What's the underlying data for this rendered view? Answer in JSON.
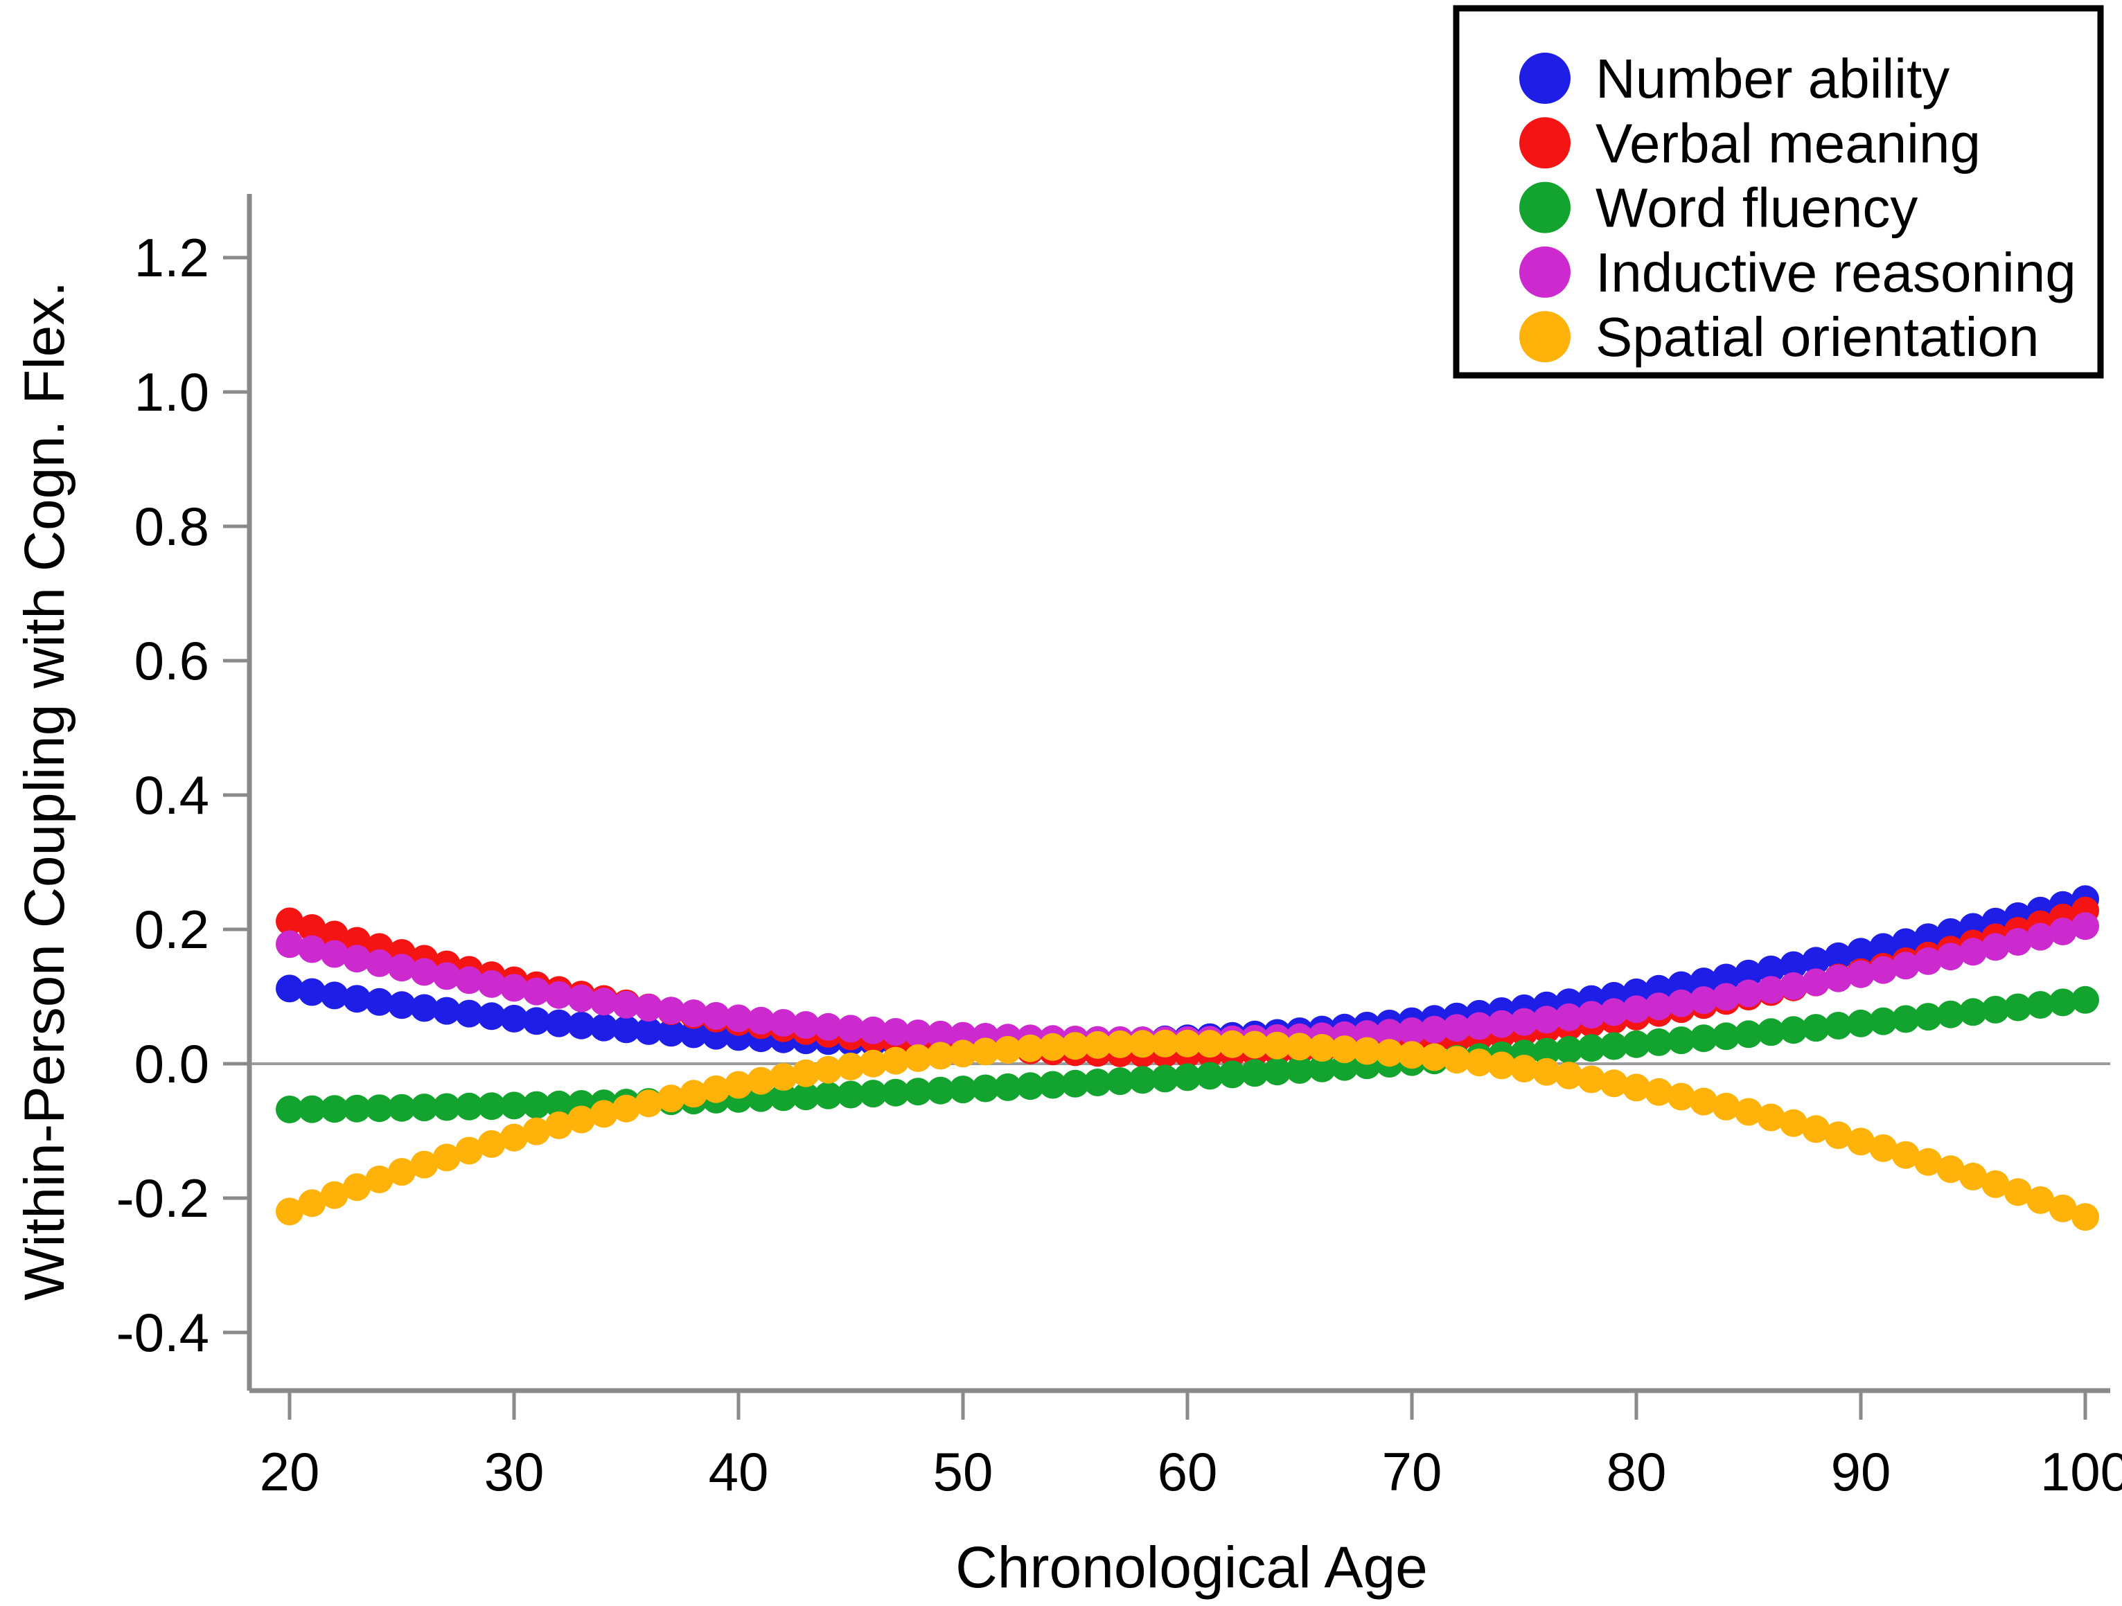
{
  "figure": {
    "background_color": "#ffffff",
    "axis_color": "#8a8a8a",
    "zero_line_color": "#9b9b9b",
    "text_color": "#000000"
  },
  "chart_data": {
    "type": "scatter",
    "title": "",
    "xlabel": "Chronological Age",
    "ylabel": "Within-Person Coupling with Cogn. Flex.",
    "xlim": [
      17.5,
      101.5
    ],
    "ylim": [
      -0.49,
      1.29
    ],
    "grid": false,
    "zero_reference_line": true,
    "legend_position": "top-right",
    "marker": "filled-circle",
    "x_ticks": [
      20,
      30,
      40,
      50,
      60,
      70,
      80,
      90,
      100
    ],
    "x_tick_labels": [
      "20",
      "30",
      "40",
      "50",
      "60",
      "70",
      "80",
      "90",
      "100"
    ],
    "y_ticks": [
      1.2,
      1.0,
      0.8,
      0.6,
      0.4,
      0.2,
      0.0,
      -0.2,
      -0.4
    ],
    "y_tick_labels": [
      "1.2",
      "1.0",
      "0.8",
      "0.6",
      "0.4",
      "0.2",
      "0.0",
      "-0.2",
      "-0.4"
    ],
    "points_x_start": 20,
    "points_x_end": 100,
    "points_x_step": 1,
    "sample_ages": [
      20,
      30,
      40,
      50,
      60,
      70,
      80,
      90,
      100
    ],
    "series": [
      {
        "id": "number-ability",
        "name": "Number ability",
        "color": "#1e1ee6",
        "shape": "curve-u",
        "values_at_sample_ages": [
          0.112,
          0.067,
          0.04,
          0.03,
          0.038,
          0.063,
          0.106,
          0.167,
          0.245
        ],
        "quadratic_fit": {
          "a": 8.79167e-05,
          "b": -0.0088875,
          "c": 0.2545833
        }
      },
      {
        "id": "verbal-meaning",
        "name": "Verbal meaning",
        "color": "#f51414",
        "shape": "curve-u",
        "values_at_sample_ages": [
          0.212,
          0.124,
          0.062,
          0.026,
          0.015,
          0.03,
          0.07,
          0.136,
          0.228
        ],
        "quadratic_fit": {
          "a": 0.000128196,
          "b": -0.01518347,
          "c": 0.46439111
        }
      },
      {
        "id": "word-fluency",
        "name": "Word fluency",
        "color": "#12a42e",
        "shape": "curve-rising",
        "values_at_sample_ages": [
          -0.068,
          -0.062,
          -0.052,
          -0.038,
          -0.02,
          0.002,
          0.029,
          0.06,
          0.095
        ],
        "quadratic_fit": {
          "a": 2.09375e-05,
          "b": -0.000475,
          "c": -0.066875
        }
      },
      {
        "id": "inductive-reasoning",
        "name": "Inductive reasoning",
        "color": "#cc29ce",
        "shape": "curve-u",
        "values_at_sample_ages": [
          0.178,
          0.113,
          0.068,
          0.042,
          0.035,
          0.048,
          0.081,
          0.133,
          0.205
        ],
        "quadratic_fit": {
          "a": 9.76347e-05,
          "b": -0.01137867,
          "c": 0.36651953
        }
      },
      {
        "id": "spatial-orientation",
        "name": "Spatial orientation",
        "color": "#ffb20a",
        "shape": "curve-inverted-u",
        "values_at_sample_ages": [
          -0.22,
          -0.11,
          -0.031,
          0.015,
          0.03,
          0.013,
          -0.035,
          -0.116,
          -0.228
        ],
        "quadratic_fit": {
          "a": -0.000158787,
          "b": 0.01895444,
          "c": -0.535574
        }
      }
    ]
  },
  "legend": {
    "items": [
      {
        "label": "Number ability",
        "color": "#1e1ee6"
      },
      {
        "label": "Verbal meaning",
        "color": "#f51414"
      },
      {
        "label": "Word fluency",
        "color": "#12a42e"
      },
      {
        "label": "Inductive reasoning",
        "color": "#cc29ce"
      },
      {
        "label": "Spatial orientation",
        "color": "#ffb20a"
      }
    ]
  }
}
